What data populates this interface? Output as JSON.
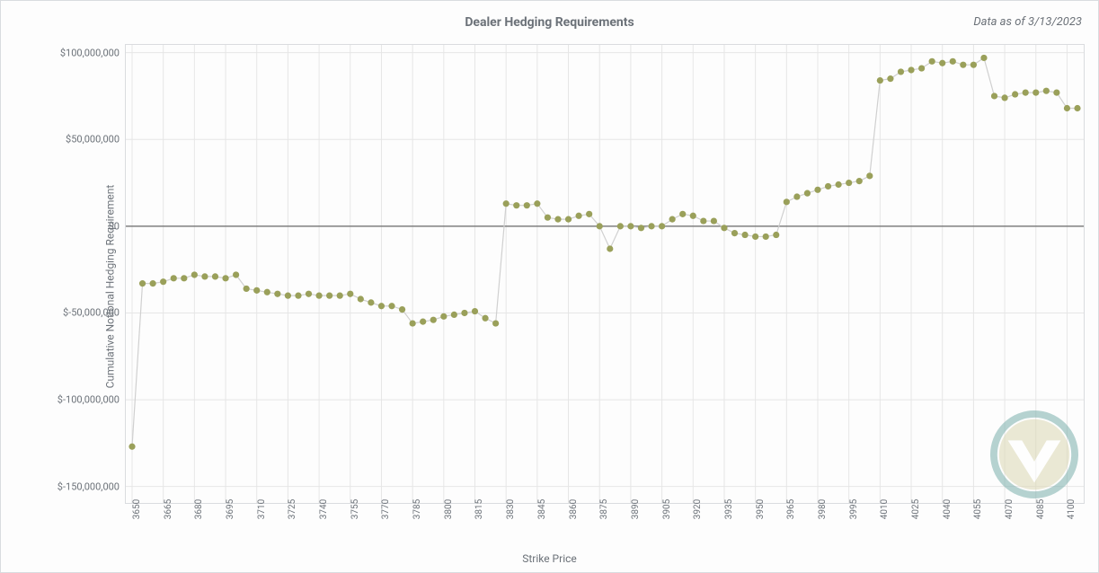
{
  "title": "Dealer Hedging Requirements",
  "as_of_label": "Data as of 3/13/2023",
  "xlabel": "Strike Price",
  "ylabel": "Cumulative Notional Hedging Requirement",
  "chart": {
    "type": "line-scatter",
    "background_color": "#fdfdfd",
    "grid_color": "#e6e6e6",
    "zero_line_color": "#7f7f7f",
    "border_color": "#dadcdf",
    "line_color": "#d0d0d0",
    "line_width": 1.2,
    "marker_color": "#9aa05a",
    "marker_radius": 3.6,
    "title_fontsize": 14,
    "label_fontsize": 12,
    "tick_fontsize": 11,
    "x_tick_rotation": -90,
    "ylim": [
      -160000000,
      105000000
    ],
    "ytick_step": 50000000,
    "ytick_min": -150000000,
    "ytick_max": 100000000,
    "ytick_format": "currency",
    "x_categories": [
      "3650",
      "3655",
      "3660",
      "3665",
      "3670",
      "3675",
      "3680",
      "3685",
      "3690",
      "3695",
      "3700",
      "3705",
      "3710",
      "3715",
      "3720",
      "3725",
      "3730",
      "3735",
      "3740",
      "3745",
      "3750",
      "3755",
      "3760",
      "3765",
      "3770",
      "3775",
      "3780",
      "3785",
      "3790",
      "3795",
      "3800",
      "3805",
      "3810",
      "3815",
      "3820",
      "3825",
      "3830",
      "3835",
      "3840",
      "3845",
      "3850",
      "3855",
      "3860",
      "3865",
      "3870",
      "3875",
      "3880",
      "3885",
      "3890",
      "3895",
      "3900",
      "3905",
      "3910",
      "3915",
      "3920",
      "3925",
      "3930",
      "3935",
      "3940",
      "3945",
      "3950",
      "3955",
      "3960",
      "3965",
      "3970",
      "3975",
      "3980",
      "3985",
      "3990",
      "3995",
      "4000",
      "4005",
      "4010",
      "4015",
      "4020",
      "4025",
      "4030",
      "4035",
      "4040",
      "4045",
      "4050",
      "4055",
      "4060",
      "4065",
      "4070",
      "4075",
      "4080",
      "4085",
      "4090",
      "4095",
      "4100",
      "4105"
    ],
    "x_tick_every": 3,
    "values": [
      -127000000,
      -33000000,
      -33000000,
      -32000000,
      -30000000,
      -30000000,
      -28000000,
      -29000000,
      -29000000,
      -30000000,
      -28000000,
      -36000000,
      -37000000,
      -38000000,
      -39000000,
      -40000000,
      -40000000,
      -39000000,
      -40000000,
      -40000000,
      -40000000,
      -39000000,
      -42000000,
      -44000000,
      -46000000,
      -46000000,
      -48000000,
      -56000000,
      -55000000,
      -54000000,
      -52000000,
      -51000000,
      -50000000,
      -49000000,
      -53000000,
      -56000000,
      13000000,
      12000000,
      12000000,
      13000000,
      5000000,
      4000000,
      4000000,
      6000000,
      7000000,
      0,
      -13000000,
      0,
      0,
      -1000000,
      0,
      0,
      4000000,
      7000000,
      6000000,
      3000000,
      3000000,
      -1000000,
      -4000000,
      -5000000,
      -6000000,
      -6000000,
      -5000000,
      14000000,
      17000000,
      19000000,
      21000000,
      23000000,
      24000000,
      25000000,
      26000000,
      29000000,
      84000000,
      85000000,
      89000000,
      90000000,
      91000000,
      95000000,
      94000000,
      95000000,
      93000000,
      93000000,
      97000000,
      75000000,
      74000000,
      76000000,
      77000000,
      77000000,
      78000000,
      77000000,
      68000000,
      68000000
    ],
    "logo": {
      "outer_ring_color": "#7bb0ad",
      "inner_fill_color": "#dcd8b4",
      "v_color": "#ffffff",
      "ring_width": 8
    }
  }
}
